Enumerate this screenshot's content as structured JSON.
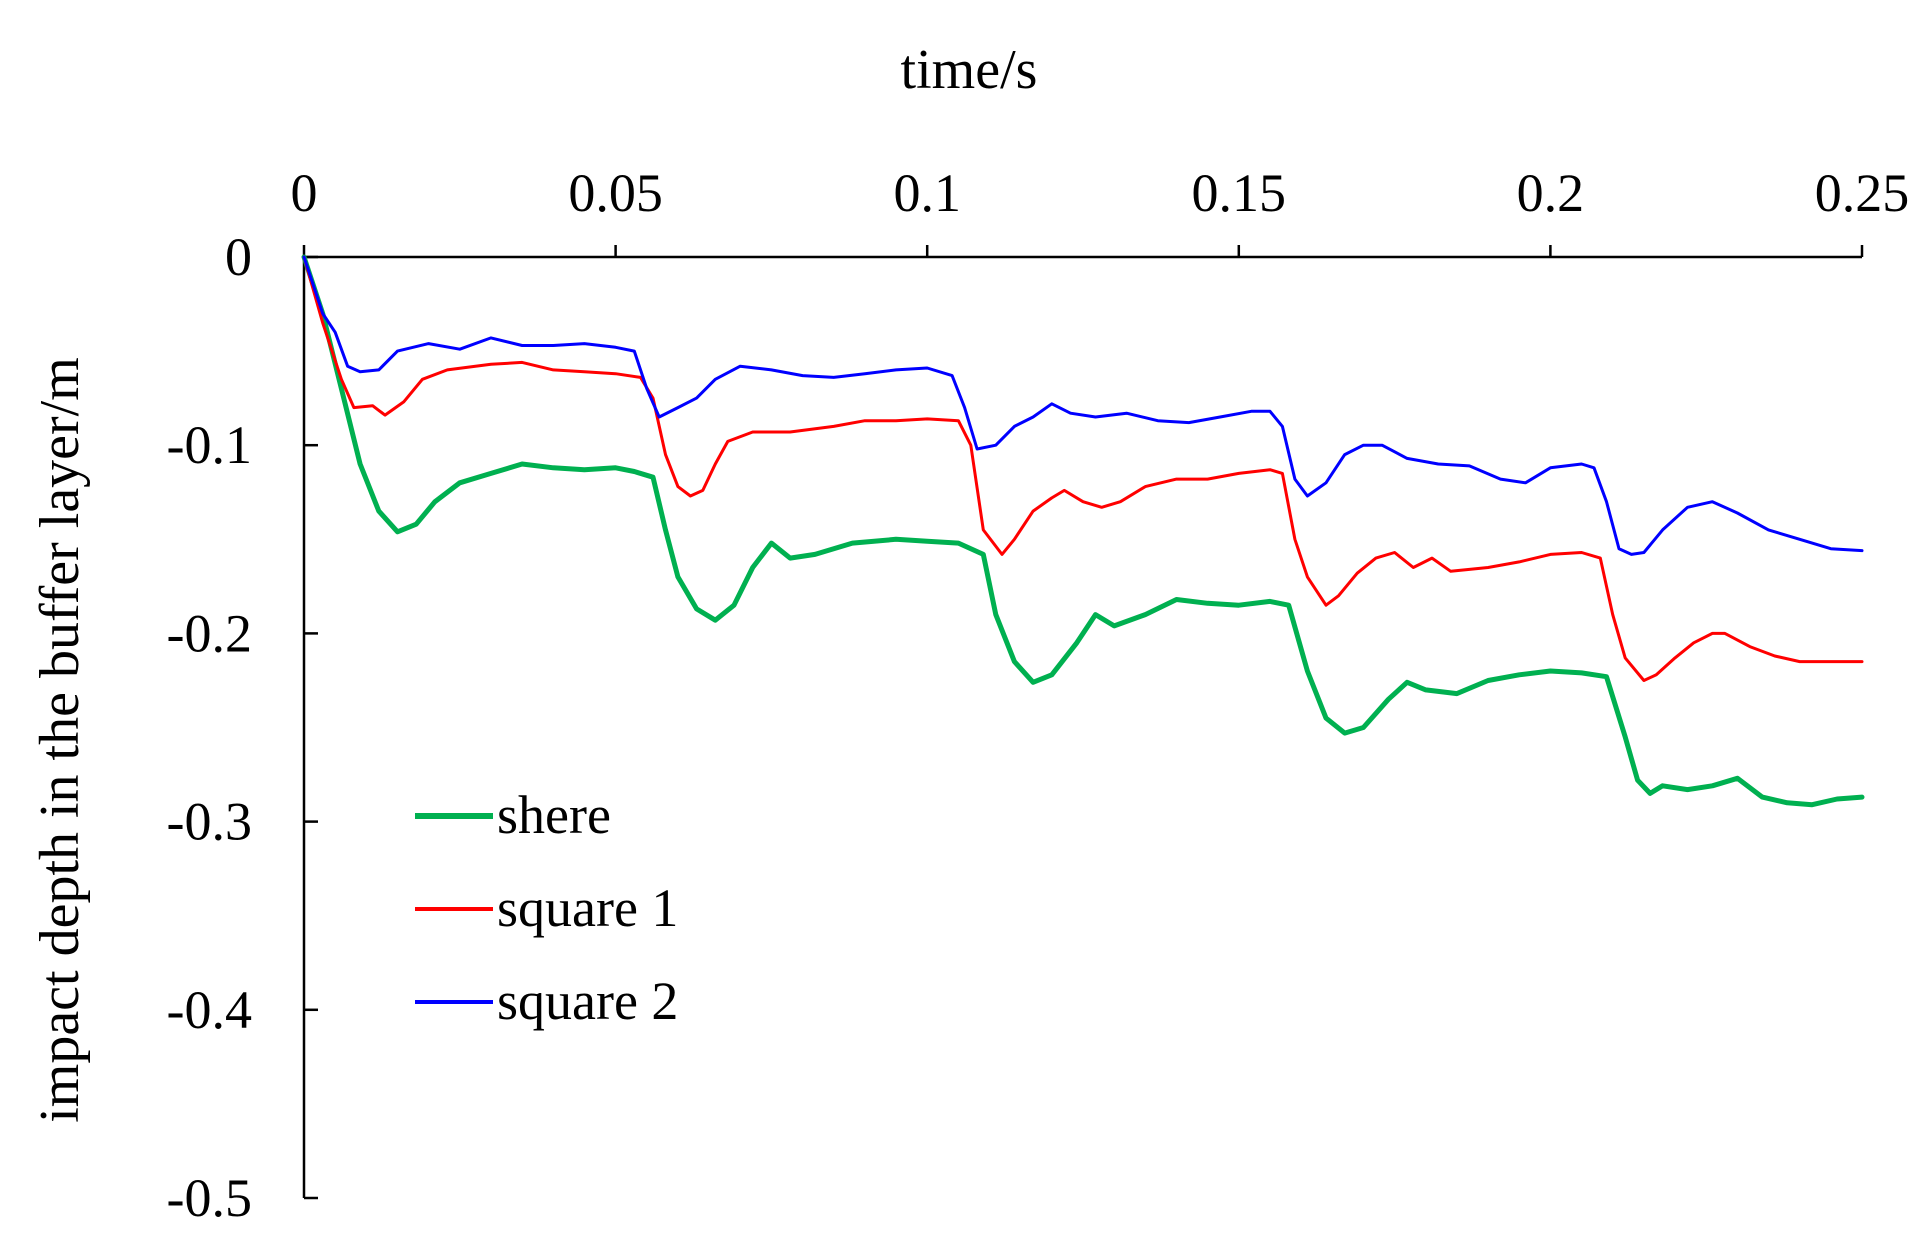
{
  "chart_data": {
    "type": "line",
    "xlabel": "time/s",
    "ylabel": "impact depth in the buffer layer/m",
    "xlim": [
      0,
      0.25
    ],
    "ylim": [
      -0.5,
      0
    ],
    "x_axis_position": "top",
    "grid": false,
    "legend_position": "lower-left",
    "xticks": [
      "0",
      "0.05",
      "0.1",
      "0.15",
      "0.2",
      "0.25"
    ],
    "yticks": [
      "0",
      "-0.1",
      "-0.2",
      "-0.3",
      "-0.4",
      "-0.5"
    ],
    "series": [
      {
        "name": "shere",
        "color": "#00b050",
        "width": 5,
        "points": [
          [
            0,
            0
          ],
          [
            0.003,
            -0.03
          ],
          [
            0.006,
            -0.07
          ],
          [
            0.009,
            -0.11
          ],
          [
            0.012,
            -0.135
          ],
          [
            0.015,
            -0.146
          ],
          [
            0.018,
            -0.142
          ],
          [
            0.021,
            -0.13
          ],
          [
            0.025,
            -0.12
          ],
          [
            0.03,
            -0.115
          ],
          [
            0.035,
            -0.11
          ],
          [
            0.04,
            -0.112
          ],
          [
            0.045,
            -0.113
          ],
          [
            0.05,
            -0.112
          ],
          [
            0.053,
            -0.114
          ],
          [
            0.056,
            -0.117
          ],
          [
            0.058,
            -0.145
          ],
          [
            0.06,
            -0.17
          ],
          [
            0.063,
            -0.187
          ],
          [
            0.066,
            -0.193
          ],
          [
            0.069,
            -0.185
          ],
          [
            0.072,
            -0.165
          ],
          [
            0.075,
            -0.152
          ],
          [
            0.078,
            -0.16
          ],
          [
            0.082,
            -0.158
          ],
          [
            0.088,
            -0.152
          ],
          [
            0.095,
            -0.15
          ],
          [
            0.1,
            -0.151
          ],
          [
            0.105,
            -0.152
          ],
          [
            0.109,
            -0.158
          ],
          [
            0.111,
            -0.19
          ],
          [
            0.114,
            -0.215
          ],
          [
            0.117,
            -0.226
          ],
          [
            0.12,
            -0.222
          ],
          [
            0.124,
            -0.205
          ],
          [
            0.127,
            -0.19
          ],
          [
            0.13,
            -0.196
          ],
          [
            0.135,
            -0.19
          ],
          [
            0.14,
            -0.182
          ],
          [
            0.145,
            -0.184
          ],
          [
            0.15,
            -0.185
          ],
          [
            0.155,
            -0.183
          ],
          [
            0.158,
            -0.185
          ],
          [
            0.161,
            -0.22
          ],
          [
            0.164,
            -0.245
          ],
          [
            0.167,
            -0.253
          ],
          [
            0.17,
            -0.25
          ],
          [
            0.174,
            -0.235
          ],
          [
            0.177,
            -0.226
          ],
          [
            0.18,
            -0.23
          ],
          [
            0.185,
            -0.232
          ],
          [
            0.19,
            -0.225
          ],
          [
            0.195,
            -0.222
          ],
          [
            0.2,
            -0.22
          ],
          [
            0.205,
            -0.221
          ],
          [
            0.209,
            -0.223
          ],
          [
            0.212,
            -0.255
          ],
          [
            0.214,
            -0.278
          ],
          [
            0.216,
            -0.285
          ],
          [
            0.218,
            -0.281
          ],
          [
            0.222,
            -0.283
          ],
          [
            0.226,
            -0.281
          ],
          [
            0.23,
            -0.277
          ],
          [
            0.234,
            -0.287
          ],
          [
            0.238,
            -0.29
          ],
          [
            0.242,
            -0.291
          ],
          [
            0.246,
            -0.288
          ],
          [
            0.25,
            -0.287
          ]
        ]
      },
      {
        "name": "square 1",
        "color": "#ff0000",
        "width": 3,
        "points": [
          [
            0,
            0
          ],
          [
            0.003,
            -0.035
          ],
          [
            0.006,
            -0.065
          ],
          [
            0.008,
            -0.08
          ],
          [
            0.011,
            -0.079
          ],
          [
            0.013,
            -0.084
          ],
          [
            0.016,
            -0.077
          ],
          [
            0.019,
            -0.065
          ],
          [
            0.023,
            -0.06
          ],
          [
            0.03,
            -0.057
          ],
          [
            0.035,
            -0.056
          ],
          [
            0.04,
            -0.06
          ],
          [
            0.045,
            -0.061
          ],
          [
            0.05,
            -0.062
          ],
          [
            0.054,
            -0.064
          ],
          [
            0.056,
            -0.075
          ],
          [
            0.058,
            -0.105
          ],
          [
            0.06,
            -0.122
          ],
          [
            0.062,
            -0.127
          ],
          [
            0.064,
            -0.124
          ],
          [
            0.066,
            -0.11
          ],
          [
            0.068,
            -0.098
          ],
          [
            0.072,
            -0.093
          ],
          [
            0.078,
            -0.093
          ],
          [
            0.085,
            -0.09
          ],
          [
            0.09,
            -0.087
          ],
          [
            0.095,
            -0.087
          ],
          [
            0.1,
            -0.086
          ],
          [
            0.105,
            -0.087
          ],
          [
            0.107,
            -0.1
          ],
          [
            0.109,
            -0.145
          ],
          [
            0.112,
            -0.158
          ],
          [
            0.114,
            -0.15
          ],
          [
            0.117,
            -0.135
          ],
          [
            0.12,
            -0.128
          ],
          [
            0.122,
            -0.124
          ],
          [
            0.125,
            -0.13
          ],
          [
            0.128,
            -0.133
          ],
          [
            0.131,
            -0.13
          ],
          [
            0.135,
            -0.122
          ],
          [
            0.14,
            -0.118
          ],
          [
            0.145,
            -0.118
          ],
          [
            0.15,
            -0.115
          ],
          [
            0.155,
            -0.113
          ],
          [
            0.157,
            -0.115
          ],
          [
            0.159,
            -0.15
          ],
          [
            0.161,
            -0.17
          ],
          [
            0.164,
            -0.185
          ],
          [
            0.166,
            -0.18
          ],
          [
            0.169,
            -0.168
          ],
          [
            0.172,
            -0.16
          ],
          [
            0.175,
            -0.157
          ],
          [
            0.178,
            -0.165
          ],
          [
            0.181,
            -0.16
          ],
          [
            0.184,
            -0.167
          ],
          [
            0.19,
            -0.165
          ],
          [
            0.195,
            -0.162
          ],
          [
            0.2,
            -0.158
          ],
          [
            0.205,
            -0.157
          ],
          [
            0.208,
            -0.16
          ],
          [
            0.21,
            -0.19
          ],
          [
            0.212,
            -0.213
          ],
          [
            0.215,
            -0.225
          ],
          [
            0.217,
            -0.222
          ],
          [
            0.22,
            -0.213
          ],
          [
            0.223,
            -0.205
          ],
          [
            0.226,
            -0.2
          ],
          [
            0.228,
            -0.2
          ],
          [
            0.232,
            -0.207
          ],
          [
            0.236,
            -0.212
          ],
          [
            0.24,
            -0.215
          ],
          [
            0.245,
            -0.215
          ],
          [
            0.25,
            -0.215
          ]
        ]
      },
      {
        "name": "square 2",
        "color": "#0000ff",
        "width": 3,
        "points": [
          [
            0,
            0
          ],
          [
            0.003,
            -0.03
          ],
          [
            0.005,
            -0.04
          ],
          [
            0.007,
            -0.058
          ],
          [
            0.009,
            -0.061
          ],
          [
            0.012,
            -0.06
          ],
          [
            0.015,
            -0.05
          ],
          [
            0.02,
            -0.046
          ],
          [
            0.025,
            -0.049
          ],
          [
            0.03,
            -0.043
          ],
          [
            0.035,
            -0.047
          ],
          [
            0.04,
            -0.047
          ],
          [
            0.045,
            -0.046
          ],
          [
            0.05,
            -0.048
          ],
          [
            0.053,
            -0.05
          ],
          [
            0.055,
            -0.07
          ],
          [
            0.057,
            -0.085
          ],
          [
            0.06,
            -0.08
          ],
          [
            0.063,
            -0.075
          ],
          [
            0.066,
            -0.065
          ],
          [
            0.07,
            -0.058
          ],
          [
            0.075,
            -0.06
          ],
          [
            0.08,
            -0.063
          ],
          [
            0.085,
            -0.064
          ],
          [
            0.09,
            -0.062
          ],
          [
            0.095,
            -0.06
          ],
          [
            0.1,
            -0.059
          ],
          [
            0.104,
            -0.063
          ],
          [
            0.106,
            -0.08
          ],
          [
            0.108,
            -0.102
          ],
          [
            0.111,
            -0.1
          ],
          [
            0.114,
            -0.09
          ],
          [
            0.117,
            -0.085
          ],
          [
            0.12,
            -0.078
          ],
          [
            0.123,
            -0.083
          ],
          [
            0.127,
            -0.085
          ],
          [
            0.132,
            -0.083
          ],
          [
            0.137,
            -0.087
          ],
          [
            0.142,
            -0.088
          ],
          [
            0.147,
            -0.085
          ],
          [
            0.152,
            -0.082
          ],
          [
            0.155,
            -0.082
          ],
          [
            0.157,
            -0.09
          ],
          [
            0.159,
            -0.118
          ],
          [
            0.161,
            -0.127
          ],
          [
            0.164,
            -0.12
          ],
          [
            0.167,
            -0.105
          ],
          [
            0.17,
            -0.1
          ],
          [
            0.173,
            -0.1
          ],
          [
            0.177,
            -0.107
          ],
          [
            0.182,
            -0.11
          ],
          [
            0.187,
            -0.111
          ],
          [
            0.192,
            -0.118
          ],
          [
            0.196,
            -0.12
          ],
          [
            0.2,
            -0.112
          ],
          [
            0.205,
            -0.11
          ],
          [
            0.207,
            -0.112
          ],
          [
            0.209,
            -0.13
          ],
          [
            0.211,
            -0.155
          ],
          [
            0.213,
            -0.158
          ],
          [
            0.215,
            -0.157
          ],
          [
            0.218,
            -0.145
          ],
          [
            0.222,
            -0.133
          ],
          [
            0.226,
            -0.13
          ],
          [
            0.23,
            -0.136
          ],
          [
            0.235,
            -0.145
          ],
          [
            0.24,
            -0.15
          ],
          [
            0.245,
            -0.155
          ],
          [
            0.25,
            -0.156
          ]
        ]
      }
    ]
  }
}
